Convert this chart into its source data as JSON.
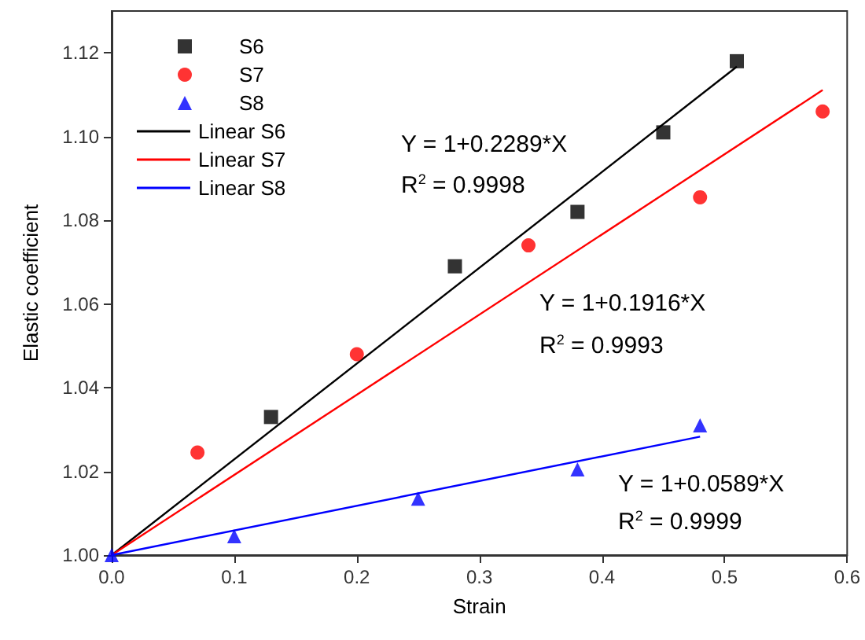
{
  "chart_data": {
    "type": "scatter",
    "xlabel": "Strain",
    "ylabel": "Elastic coefficient",
    "xlim": [
      0,
      0.6
    ],
    "ylim": [
      1.0,
      1.13
    ],
    "xticks": [
      {
        "value": 0,
        "label": "0.0"
      },
      {
        "value": 0.1,
        "label": "0.1"
      },
      {
        "value": 0.2,
        "label": "0.2"
      },
      {
        "value": 0.3,
        "label": "0.3"
      },
      {
        "value": 0.4,
        "label": "0.4"
      },
      {
        "value": 0.5,
        "label": "0.5"
      },
      {
        "value": 0.6,
        "label": "0.6"
      }
    ],
    "yticks": [
      {
        "value": 1.0,
        "label": "1.00"
      },
      {
        "value": 1.02,
        "label": "1.02"
      },
      {
        "value": 1.04,
        "label": "1.04"
      },
      {
        "value": 1.06,
        "label": "1.06"
      },
      {
        "value": 1.08,
        "label": "1.08"
      },
      {
        "value": 1.1,
        "label": "1.10"
      },
      {
        "value": 1.12,
        "label": "1.12"
      }
    ],
    "grid": false,
    "legend": "top left",
    "series": [
      {
        "name": "S6",
        "marker": "square",
        "color": "#000000",
        "x": [
          0.13,
          0.28,
          0.38,
          0.45,
          0.51
        ],
        "values": [
          1.033,
          1.069,
          1.082,
          1.101,
          1.118
        ]
      },
      {
        "name": "S7",
        "marker": "circle",
        "color": "#ff0000",
        "x": [
          0.07,
          0.2,
          0.34,
          0.48,
          0.58
        ],
        "values": [
          1.0245,
          1.048,
          1.074,
          1.0855,
          1.106
        ]
      },
      {
        "name": "S8",
        "marker": "triangle",
        "color": "#0000ff",
        "x": [
          0,
          0.1,
          0.25,
          0.38,
          0.48
        ],
        "values": [
          1.0,
          1.0045,
          1.0135,
          1.0205,
          1.031
        ]
      },
      {
        "name": "Linear S6",
        "type": "line",
        "marker": "none",
        "color": "#000000",
        "x": [
          0,
          0.51
        ],
        "values": [
          1.0,
          1.1167
        ]
      },
      {
        "name": "Linear S7",
        "type": "line",
        "marker": "none",
        "color": "#ff0000",
        "x": [
          0,
          0.58
        ],
        "values": [
          1.0,
          1.1111
        ]
      },
      {
        "name": "Linear S8",
        "type": "line",
        "marker": "none",
        "color": "#0000ff",
        "x": [
          0,
          0.48
        ],
        "values": [
          1.0,
          1.0283
        ]
      }
    ],
    "annotations": [
      "Y = 1+0.2289*X",
      "R$^{2}$ = 0.9998",
      "Y = 1+0.1916*X",
      "R$^{2}$ = 0.9993",
      "Y = 1+0.0589*X",
      "R$^{2}$ = 0.9999"
    ]
  }
}
